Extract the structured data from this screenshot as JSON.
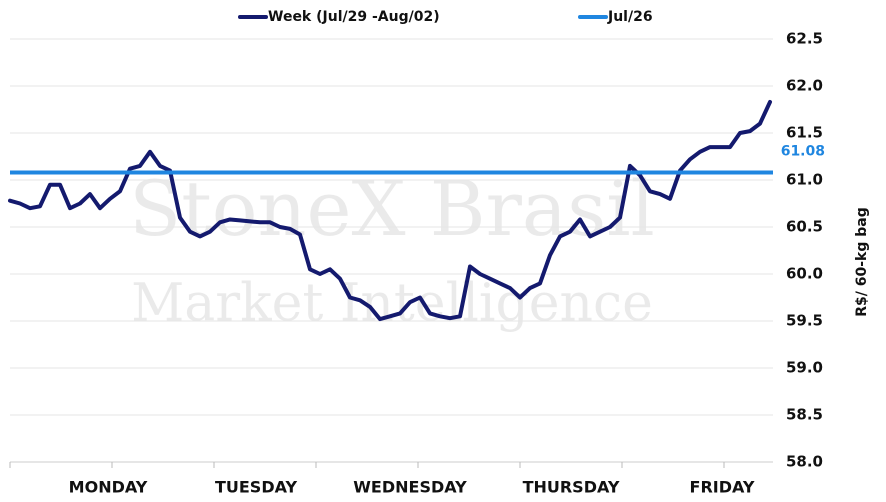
{
  "chart_data": {
    "type": "line",
    "watermark": [
      "StoneX Brasil",
      "Market Intelligence"
    ],
    "y_axis_label": "R$/ 60-kg bag",
    "x": [
      0,
      1,
      2,
      3,
      4,
      5,
      6,
      7,
      8,
      9,
      10,
      11,
      12,
      13,
      14,
      15,
      16,
      17,
      18,
      19,
      20,
      21,
      22,
      23,
      24,
      25,
      26,
      27,
      28,
      29,
      30,
      31,
      32,
      33,
      34,
      35,
      36,
      37,
      38,
      39,
      40,
      41,
      42,
      43,
      44,
      45,
      46,
      47,
      48,
      49,
      50,
      51,
      52,
      53,
      54,
      55,
      56,
      57,
      58,
      59,
      60,
      61,
      62,
      63,
      64,
      65,
      66,
      67,
      68,
      69,
      70,
      71,
      72,
      73,
      74,
      75,
      76
    ],
    "series": [
      {
        "name": "Week (Jul/29 -Aug/02)",
        "color": "#141a6e",
        "values": [
          60.78,
          60.75,
          60.7,
          60.72,
          60.95,
          60.95,
          60.7,
          60.75,
          60.85,
          60.7,
          60.8,
          60.88,
          61.12,
          61.15,
          61.3,
          61.15,
          61.1,
          60.6,
          60.45,
          60.4,
          60.45,
          60.55,
          60.58,
          60.57,
          60.56,
          60.55,
          60.55,
          60.5,
          60.48,
          60.42,
          60.05,
          60.0,
          60.05,
          59.95,
          59.75,
          59.72,
          59.65,
          59.52,
          59.55,
          59.58,
          59.7,
          59.75,
          59.58,
          59.55,
          59.53,
          59.55,
          60.08,
          60.0,
          59.95,
          59.9,
          59.85,
          59.75,
          59.85,
          59.9,
          60.2,
          60.4,
          60.45,
          60.58,
          60.4,
          60.45,
          60.5,
          60.6,
          61.15,
          61.05,
          60.88,
          60.85,
          60.8,
          61.1,
          61.22,
          61.3,
          61.35,
          61.35,
          61.35,
          61.5,
          61.52,
          61.6,
          61.83
        ]
      },
      {
        "name": "Jul/26",
        "color": "#1f86e0",
        "constant": 61.08
      }
    ],
    "xlim": [
      0,
      76.3
    ],
    "xticks": [
      {
        "value": 9.8,
        "label": "MONDAY"
      },
      {
        "value": 24.6,
        "label": "TUESDAY"
      },
      {
        "value": 40,
        "label": "WEDNESDAY"
      },
      {
        "value": 56.1,
        "label": "THURSDAY"
      },
      {
        "value": 71.2,
        "label": "FRIDAY"
      }
    ],
    "xminor_ticks": [
      0,
      10.2,
      20.4,
      30.6,
      40.8,
      51,
      61.2,
      71.4
    ],
    "ylim": [
      58,
      62.5
    ],
    "yticks": [
      {
        "value": 58,
        "label": "58.0"
      },
      58.5,
      {
        "value": 59,
        "label": "59.0"
      },
      59.5,
      {
        "value": 60,
        "label": "60.0"
      },
      60.5,
      {
        "value": 61,
        "label": "61.0"
      },
      61.5,
      {
        "value": 62,
        "label": "62.0"
      },
      62.5
    ],
    "grid": true
  }
}
